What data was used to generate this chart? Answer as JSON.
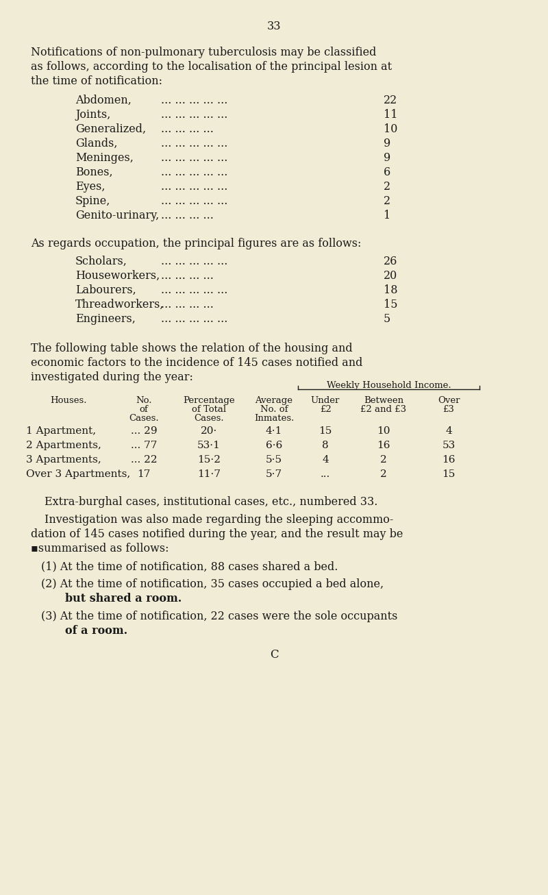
{
  "bg_color": "#f0ecd5",
  "text_color": "#1a1a1a",
  "page_number": "33",
  "localisation_rows": [
    [
      "Abdomen,",
      "22"
    ],
    [
      "Joints,",
      "11"
    ],
    [
      "Generalized,",
      "10"
    ],
    [
      "Glands,",
      "9"
    ],
    [
      "Meninges,",
      "9"
    ],
    [
      "Bones,",
      "6"
    ],
    [
      "Eyes,",
      "2"
    ],
    [
      "Spine,",
      "2"
    ],
    [
      "Genito-urinary,",
      "1"
    ]
  ],
  "occupation_rows": [
    [
      "Scholars,",
      "26"
    ],
    [
      "Houseworkers,",
      "20"
    ],
    [
      "Labourers,",
      "18"
    ],
    [
      "Threadworkers,",
      "15"
    ],
    [
      "Engineers,",
      "5"
    ]
  ],
  "table_data": [
    [
      "1 Apartment,",
      "... 29",
      "20·",
      "4·1",
      "15",
      "10",
      "4"
    ],
    [
      "2 Apartments,",
      "... 77",
      "53·1",
      "6·6",
      "8",
      "16",
      "53"
    ],
    [
      "3 Apartments,",
      "... 22",
      "15·2",
      "5·5",
      "4",
      "2",
      "16"
    ],
    [
      "Over 3 Apartments,",
      "17",
      "11·7",
      "5·7",
      "...",
      "2",
      "15"
    ]
  ],
  "dots": "... ... ... ... ...",
  "dots4": "... ... ... ...",
  "dots_occ": "... .... ... ... ...",
  "dots_occ4": "... ... ... ..."
}
